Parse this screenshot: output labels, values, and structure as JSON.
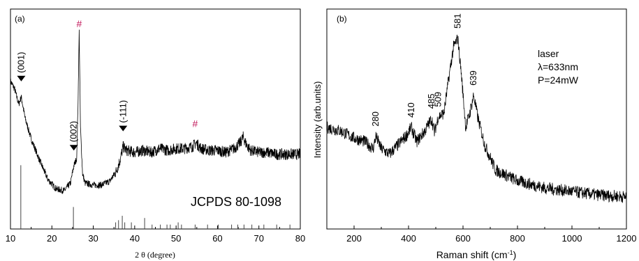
{
  "chart_data": [
    {
      "panel": "(a)",
      "type": "line",
      "xlabel": "2 θ (degree)",
      "ylabel": "",
      "xlim": [
        10,
        80
      ],
      "xticks": [
        10,
        20,
        30,
        40,
        50,
        60,
        70,
        80
      ],
      "series": [
        {
          "x": [
            10,
            11,
            12,
            12.6,
            13.5,
            15,
            17,
            19,
            21,
            23,
            24.5,
            25.3,
            26,
            26.3,
            26.6,
            26.9,
            27.4,
            28,
            30,
            32,
            34,
            35.5,
            36.5,
            37.2,
            38,
            40,
            42,
            44,
            46,
            48,
            50,
            52,
            54,
            54.8,
            56,
            58,
            60,
            62,
            64,
            65.5,
            66.2,
            67,
            68,
            70,
            72,
            74,
            76,
            78,
            80
          ],
          "y": [
            0.74,
            0.7,
            0.62,
            0.66,
            0.55,
            0.44,
            0.33,
            0.23,
            0.18,
            0.17,
            0.21,
            0.3,
            0.34,
            0.6,
            1.0,
            0.5,
            0.26,
            0.21,
            0.2,
            0.2,
            0.22,
            0.27,
            0.33,
            0.4,
            0.38,
            0.37,
            0.38,
            0.37,
            0.39,
            0.38,
            0.39,
            0.39,
            0.4,
            0.42,
            0.39,
            0.38,
            0.38,
            0.37,
            0.39,
            0.42,
            0.45,
            0.41,
            0.38,
            0.37,
            0.37,
            0.36,
            0.36,
            0.36,
            0.36
          ]
        }
      ],
      "reference_lines": {
        "x": [
          12.5,
          25.2,
          35.4,
          36.1,
          37,
          37.6,
          39.2,
          42.4,
          44.2,
          46.2,
          47.8,
          48.6,
          50.5,
          51.3,
          54.6,
          57.6,
          60.2,
          63.4,
          64.9,
          66.4,
          68.3,
          71.2,
          74.3,
          77.5
        ],
        "height": [
          0.29,
          0.1,
          0.03,
          0.04,
          0.06,
          0.03,
          0.03,
          0.05,
          0.02,
          0.02,
          0.02,
          0.02,
          0.03,
          0.02,
          0.02,
          0.02,
          0.02,
          0.02,
          0.02,
          0.02,
          0.02,
          0.02,
          0.02,
          0.02
        ]
      },
      "annotations": [
        {
          "text": "(001)",
          "x": 12.6
        },
        {
          "text": "(002)",
          "x": 25.3
        },
        {
          "text": "(-111)",
          "x": 37.2
        },
        {
          "text": "#",
          "x": 26.6
        },
        {
          "text": "#",
          "x": 54.6
        }
      ],
      "label": "JCPDS 80-1098"
    },
    {
      "panel": "(b)",
      "type": "line",
      "xlabel": "Raman shift (cm-1)",
      "ylabel": "Intensity (arb.units)",
      "xlim": [
        100,
        1200
      ],
      "xticks": [
        200,
        400,
        600,
        800,
        1000,
        1200
      ],
      "series": [
        {
          "x": [
            100,
            150,
            200,
            240,
            270,
            280,
            300,
            330,
            360,
            390,
            410,
            430,
            460,
            485,
            495,
            509,
            530,
            550,
            565,
            581,
            595,
            610,
            625,
            639,
            655,
            680,
            720,
            800,
            900,
            1000,
            1100,
            1200
          ],
          "y": [
            0.5,
            0.48,
            0.44,
            0.42,
            0.38,
            0.45,
            0.38,
            0.35,
            0.4,
            0.45,
            0.5,
            0.42,
            0.48,
            0.55,
            0.47,
            0.56,
            0.58,
            0.8,
            0.95,
            1.0,
            0.78,
            0.5,
            0.58,
            0.68,
            0.55,
            0.4,
            0.26,
            0.2,
            0.16,
            0.14,
            0.12,
            0.11
          ]
        }
      ],
      "peak_labels": [
        "280",
        "410",
        "485",
        "509",
        "581",
        "639"
      ],
      "annotations": [
        {
          "text": "laser"
        },
        {
          "text": "λ=633nm"
        },
        {
          "text": "P=24mW"
        }
      ]
    }
  ]
}
